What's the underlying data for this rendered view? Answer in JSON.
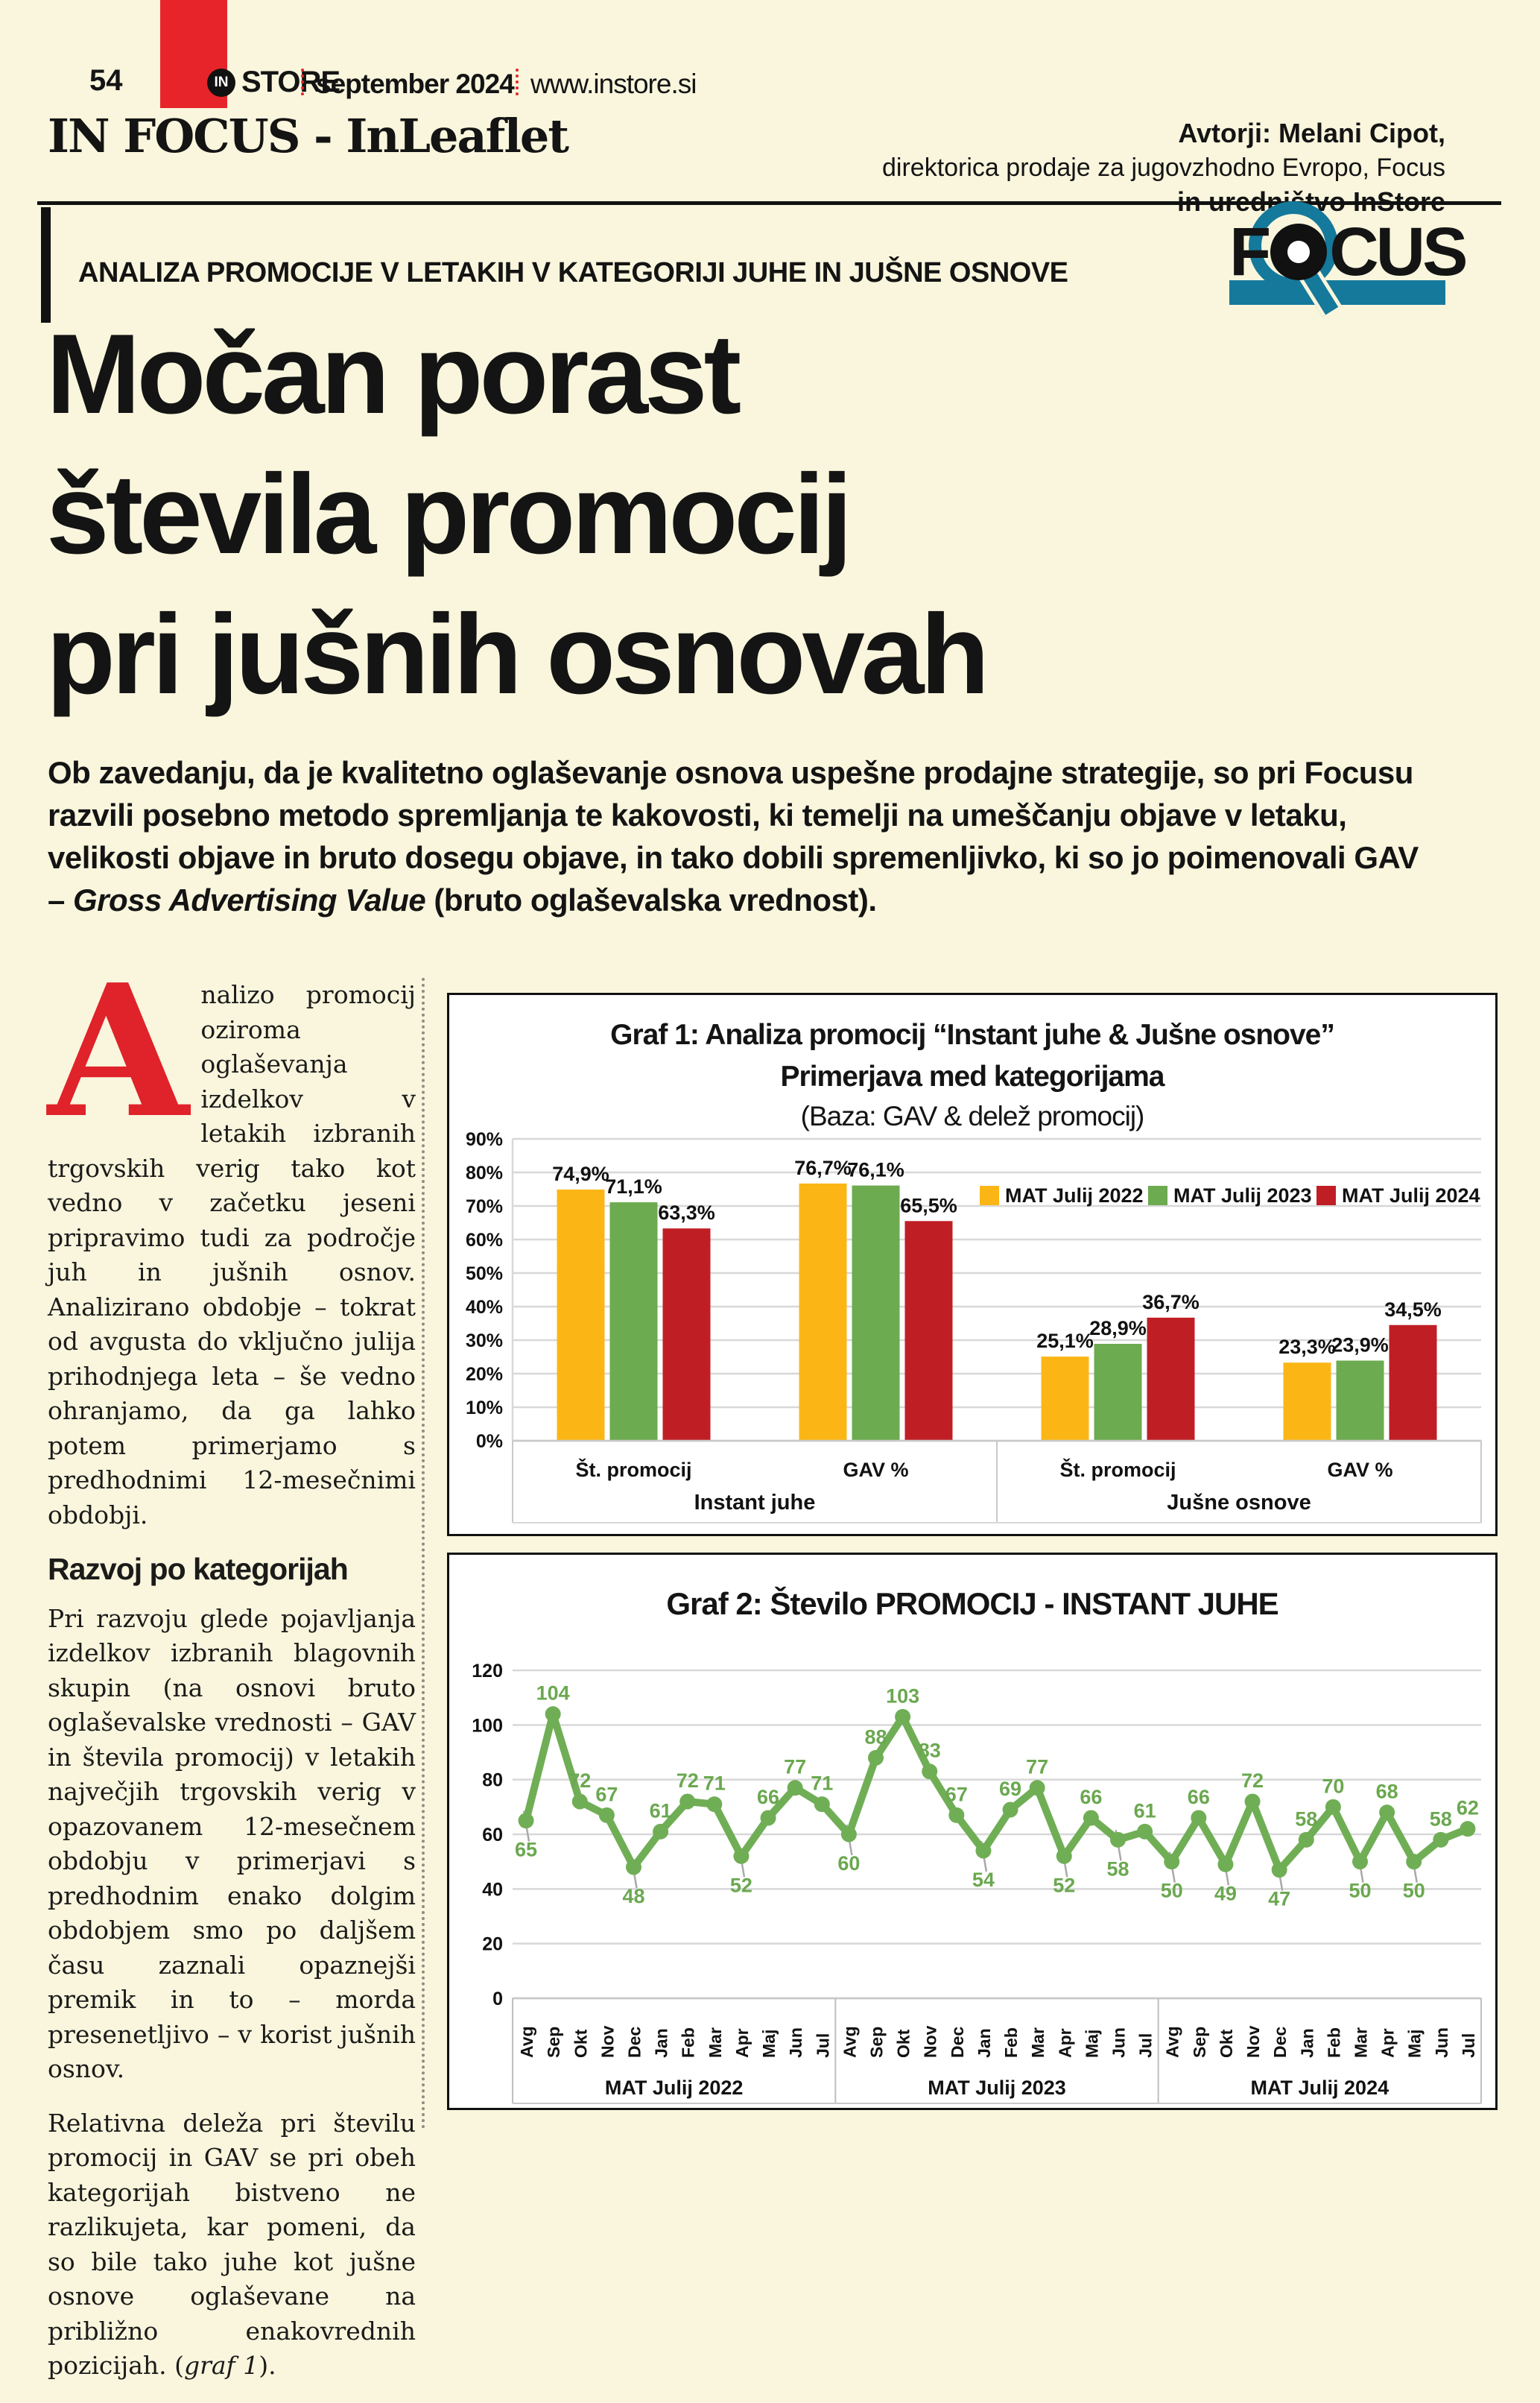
{
  "colors": {
    "page_bg": "#F9F6DD",
    "brand_red": "#E8242B",
    "dropcap_red": "#E0222A",
    "teal": "#15799B",
    "ink": "#141414",
    "grid_gray": "#D8D8D8",
    "chart_yellow": "#FBB616",
    "chart_green": "#6CAB4F",
    "chart_red": "#C01E25",
    "line_green": "#70AE56"
  },
  "header": {
    "page_number": "54",
    "brand_in": "IN",
    "brand_store": "STORE",
    "issue": "september 2024",
    "website": "www.instore.si",
    "section_title": "IN FOCUS - InLeaflet",
    "authors_line1": "Avtorji: Melani Cipot,",
    "authors_line2": "direktorica prodaje za jugovzhodno Evropo, Focus",
    "authors_line3": "in uredništvo InStore"
  },
  "kicker": {
    "text": "ANALIZA PROMOCIJE V LETAKIH V KATEGORIJI JUHE IN JUŠNE OSNOVE",
    "focus_f": "F",
    "focus_cus": "CUS"
  },
  "headline": {
    "line1": "Močan porast",
    "line2": "števila promocij",
    "line3": "pri jušnih osnovah"
  },
  "intro": {
    "before": "Ob zavedanju, da je kvalitetno oglaševanje osnova uspešne prodajne strategije, so pri Focusu razvili posebno metodo spremljanja te kakovosti, ki temelji na umeščanju objave v letaku, velikosti objave in bruto dosegu objave, in tako dobili spremenljivko, ki so jo poimenovali GAV – ",
    "italic": "Gross Advertising Value",
    "after": " (bruto oglaševalska vrednost)."
  },
  "article": {
    "dropcap": "A",
    "p1": "nalizo promocij oziroma oglaševanja izdelkov v letakih izbranih trgovskih verig tako kot vedno v začetku jeseni pripravimo tudi za področje juh in jušnih osnov. Analizirano obdobje – tokrat od avgusta do vključno julija prihodnjega leta – še vedno ohranjamo, da ga lahko potem primerjamo s predhodnimi 12-mesečnimi obdobji.",
    "heading": "Razvoj po kategorijah",
    "p2": "Pri razvoju glede pojavljanja izdelkov izbranih blagovnih skupin (na osnovi bruto oglaševalske vrednosti – GAV in števila promocij) v letakih največjih trgovskih verig v opazovanem 12-mesečnem obdobju v primerjavi s predhodnim enako dolgim obdobjem smo po daljšem času zaznali opaznejši premik in to – morda presenetljivo – v korist jušnih osnov.",
    "p3_before": "Relativna deleža pri številu promocij in GAV se pri obeh kategorijah bistveno ne razlikujeta, kar pomeni, da so bile tako juhe kot jušne osnove oglaševane na približno enakovrednih pozicijah. (",
    "p3_italic": "graf 1",
    "p3_after": ")."
  },
  "chart_data": [
    {
      "type": "bar",
      "title_line1": "Graf 1: Analiza promocij “Instant juhe & Jušne osnove”",
      "title_line2": "Primerjava  med kategorijama",
      "subtitle": "(Baza: GAV & delež promocij)",
      "ylim": [
        0,
        90
      ],
      "yticks": [
        "0%",
        "10%",
        "20%",
        "30%",
        "40%",
        "50%",
        "60%",
        "70%",
        "80%",
        "90%"
      ],
      "grid": true,
      "legend_position": "inside-top-right",
      "categories": [
        "Instant juhe",
        "Jušne osnove"
      ],
      "metrics": [
        "Št. promocij",
        "GAV %"
      ],
      "group_order": [
        "Instant juhe · Št. promocij",
        "Instant juhe · GAV %",
        "Jušne osnove · Št. promocij",
        "Jušne osnove · GAV %"
      ],
      "series": [
        {
          "name": "MAT Julij 2022",
          "color": "#FBB616",
          "values": [
            74.9,
            76.7,
            25.1,
            23.3
          ]
        },
        {
          "name": "MAT Julij 2023",
          "color": "#6CAB4F",
          "values": [
            71.1,
            76.1,
            28.9,
            23.9
          ]
        },
        {
          "name": "MAT Julij 2024",
          "color": "#C01E25",
          "values": [
            63.3,
            65.5,
            36.7,
            34.5
          ]
        }
      ],
      "value_labels": [
        [
          "74,9%",
          "76,7%",
          "25,1%",
          "23,3%"
        ],
        [
          "71,1%",
          "76,1%",
          "28,9%",
          "23,9%"
        ],
        [
          "63,3%",
          "65,5%",
          "36,7%",
          "34,5%"
        ]
      ]
    },
    {
      "type": "line",
      "title": "Graf 2: Število PROMOCIJ - INSTANT JUHE",
      "ylim": [
        0,
        120
      ],
      "yticks": [
        0,
        20,
        40,
        60,
        80,
        100,
        120
      ],
      "grid": true,
      "line_color": "#70AE56",
      "months": [
        "Avg",
        "Sep",
        "Okt",
        "Nov",
        "Dec",
        "Jan",
        "Feb",
        "Mar",
        "Apr",
        "Maj",
        "Jun",
        "Jul"
      ],
      "periods": [
        {
          "name": "MAT Julij 2022",
          "values": [
            65,
            104,
            72,
            67,
            48,
            61,
            72,
            71,
            52,
            66,
            77,
            71
          ]
        },
        {
          "name": "MAT Julij 2023",
          "values": [
            60,
            88,
            103,
            83,
            67,
            54,
            69,
            77,
            52,
            66,
            58,
            61
          ]
        },
        {
          "name": "MAT Julij 2024",
          "values": [
            50,
            66,
            49,
            72,
            47,
            58,
            70,
            50,
            68,
            50,
            58,
            62
          ]
        }
      ]
    }
  ]
}
